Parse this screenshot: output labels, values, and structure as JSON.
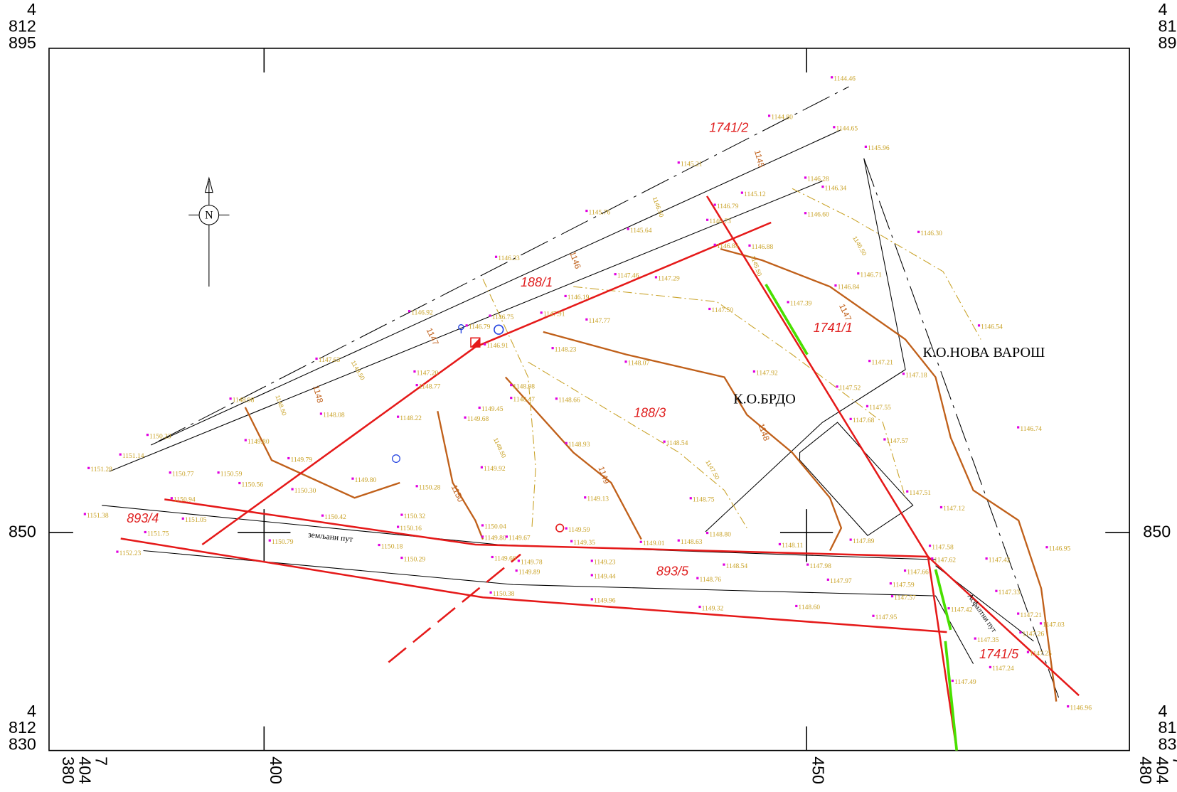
{
  "coordinates": {
    "north_top": [
      "4",
      "812",
      "895"
    ],
    "north_middle": "850",
    "north_bottom": [
      "4",
      "812",
      "830"
    ],
    "east_left": [
      "7",
      "404",
      "380"
    ],
    "east_middle_1": "400",
    "east_middle_2": "450",
    "east_right": [
      "7",
      "404",
      "480"
    ]
  },
  "north_arrow": "N",
  "regions": [
    "К.О.БРДО",
    "К.О.НОВА ВАРОШ"
  ],
  "parcels": [
    "188/1",
    "188/3",
    "1741/2",
    "1741/1",
    "1741/5",
    "893/4",
    "893/5"
  ],
  "roads": [
    "земљани пут",
    "Асфалтни пут"
  ],
  "contour_labels": [
    "1145",
    "1146",
    "1147",
    "1147",
    "1148",
    "1148",
    "1149",
    "1150"
  ],
  "half_contour_labels": [
    "1145.50",
    "1146.50",
    "1146.50",
    "1147.50",
    "1148.50",
    "1148.50",
    "1149.50"
  ],
  "spot_heights": [
    "1144.46",
    "1144.80",
    "1144.65",
    "1145.96",
    "1145.21",
    "1146.28",
    "1146.34",
    "1145.12",
    "1146.79",
    "1146.60",
    "1145.76",
    "1146.73",
    "1146.30",
    "1145.64",
    "1146.84",
    "1146.88",
    "1146.33",
    "1147.46",
    "1147.29",
    "1146.71",
    "1146.84",
    "1146.19",
    "1147.39",
    "1147.50",
    "1146.92",
    "1147.91",
    "1147.77",
    "1146.75",
    "1146.79",
    "1146.54",
    "1146.91",
    "1148.23",
    "1147.21",
    "1147.63",
    "1148.07",
    "1147.20",
    "1147.92",
    "1147.18",
    "1148.77",
    "1148.98",
    "1147.52",
    "1148.98",
    "1148.47",
    "1148.66",
    "1147.55",
    "1148.08",
    "1149.45",
    "1149.68",
    "1148.22",
    "1147.68",
    "1148.93",
    "1150.23",
    "1149.80",
    "1147.57",
    "1148.54",
    "1149.79",
    "1146.74",
    "1150.59",
    "1149.92",
    "1150.77",
    "1151.28",
    "1151.14",
    "1150.56",
    "1150.28",
    "1149.80",
    "1150.30",
    "1149.13",
    "1148.75",
    "1147.51",
    "1147.12",
    "1150.94",
    "1151.38",
    "1151.05",
    "1150.42",
    "1150.32",
    "1150.16",
    "1149.59",
    "1148.80",
    "1147.89",
    "1151.75",
    "1150.04",
    "1149.80",
    "1149.67",
    "1149.35",
    "1149.01",
    "1148.63",
    "1148.11",
    "1150.18",
    "1152.23",
    "1150.79",
    "1150.29",
    "1149.66",
    "1149.78",
    "1149.23",
    "1148.54",
    "1147.98",
    "1147.58",
    "1147.62",
    "1147.42",
    "1147.66",
    "1149.89",
    "1149.44",
    "1148.76",
    "1147.97",
    "1147.59",
    "1147.33",
    "1150.38",
    "1149.96",
    "1149.32",
    "1148.60",
    "1147.57",
    "1147.42",
    "1147.95",
    "1147.21",
    "1147.03",
    "1147.26",
    "1147.35",
    "1147.25",
    "1147.24",
    "1147.49",
    "1146.95",
    "1146.96"
  ]
}
